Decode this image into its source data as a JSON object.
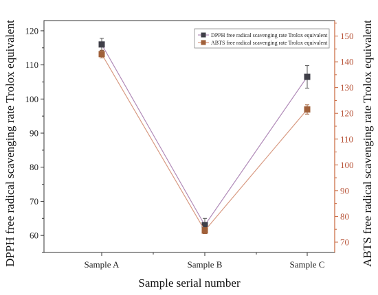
{
  "chart_data": {
    "type": "line",
    "categories": [
      "Sample A",
      "Sample B",
      "Sample C"
    ],
    "xlabel": "Sample serial number",
    "ylabel_left": "DPPH free radical scavenging rate Trolox equivalent",
    "ylabel_right": "ABTS free radical scavenging rate Trolox equivalent",
    "ylim_left": [
      55,
      123
    ],
    "yticks_left": [
      60,
      70,
      80,
      90,
      100,
      110,
      120
    ],
    "ylim_right": [
      66,
      156
    ],
    "yticks_right": [
      70,
      80,
      90,
      100,
      110,
      120,
      130,
      140,
      150
    ],
    "legend_position": "top-right",
    "grid": false,
    "series": [
      {
        "name": "DPPH free radical scavenging rate Trolox equivalent",
        "axis": "left",
        "values": [
          116.0,
          63.0,
          106.5
        ],
        "errors": [
          1.8,
          2.0,
          3.3
        ],
        "line_color": "#b08ab8",
        "marker_color": "#3f3f48"
      },
      {
        "name": "ABTS free radical scavenging rate Trolox equivalent",
        "axis": "right",
        "values": [
          143.0,
          74.5,
          121.5
        ],
        "errors": [
          1.5,
          1.2,
          1.8
        ],
        "line_color": "#d89a82",
        "marker_color": "#a0603a"
      }
    ]
  }
}
